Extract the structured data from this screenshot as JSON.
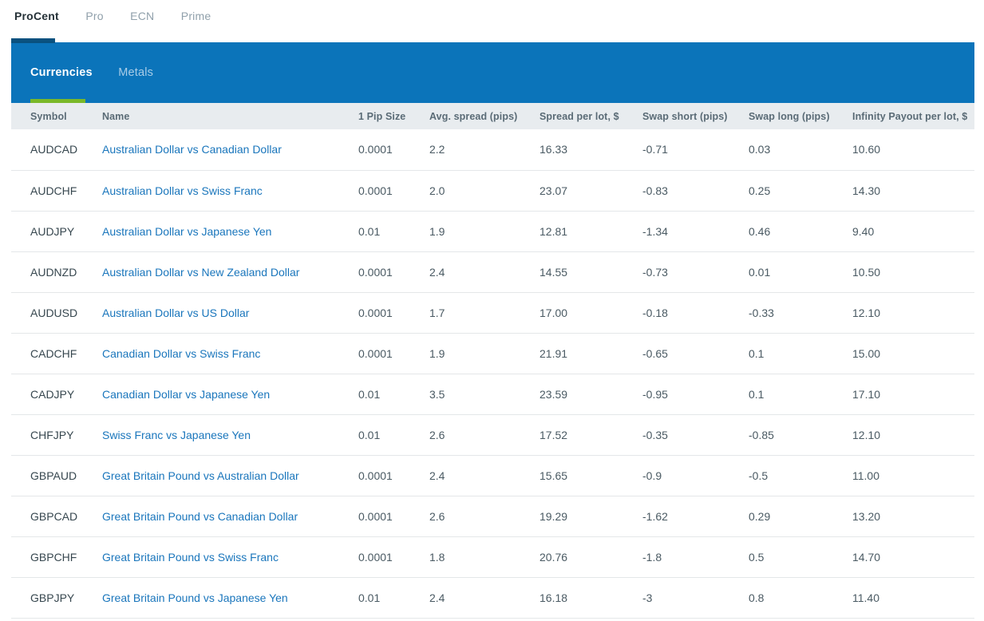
{
  "account_tabs": [
    {
      "label": "ProCent",
      "active": true
    },
    {
      "label": "Pro",
      "active": false
    },
    {
      "label": "ECN",
      "active": false
    },
    {
      "label": "Prime",
      "active": false
    }
  ],
  "instrument_tabs": [
    {
      "label": "Currencies",
      "active": true
    },
    {
      "label": "Metals",
      "active": false
    }
  ],
  "colors": {
    "panel_blue": "#0b74ba",
    "active_account_indicator": "#09517f",
    "active_instrument_underline": "#7ab829",
    "link_blue": "#1a76bc",
    "header_bg": "#e8ecef"
  },
  "table": {
    "columns": [
      "Symbol",
      "Name",
      "1 Pip Size",
      "Avg. spread (pips)",
      "Spread per lot, $",
      "Swap short (pips)",
      "Swap long (pips)",
      "Infinity Payout per lot, $"
    ],
    "rows": [
      [
        "AUDCAD",
        "Australian Dollar vs Canadian Dollar",
        "0.0001",
        "2.2",
        "16.33",
        "-0.71",
        "0.03",
        "10.60"
      ],
      [
        "AUDCHF",
        "Australian Dollar vs Swiss Franc",
        "0.0001",
        "2.0",
        "23.07",
        "-0.83",
        "0.25",
        "14.30"
      ],
      [
        "AUDJPY",
        "Australian Dollar vs Japanese Yen",
        "0.01",
        "1.9",
        "12.81",
        "-1.34",
        "0.46",
        "9.40"
      ],
      [
        "AUDNZD",
        "Australian Dollar vs New Zealand Dollar",
        "0.0001",
        "2.4",
        "14.55",
        "-0.73",
        "0.01",
        "10.50"
      ],
      [
        "AUDUSD",
        "Australian Dollar vs US Dollar",
        "0.0001",
        "1.7",
        "17.00",
        "-0.18",
        "-0.33",
        "12.10"
      ],
      [
        "CADCHF",
        "Canadian Dollar vs Swiss Franc",
        "0.0001",
        "1.9",
        "21.91",
        "-0.65",
        "0.1",
        "15.00"
      ],
      [
        "CADJPY",
        "Canadian Dollar vs Japanese Yen",
        "0.01",
        "3.5",
        "23.59",
        "-0.95",
        "0.1",
        "17.10"
      ],
      [
        "CHFJPY",
        "Swiss Franc vs Japanese Yen",
        "0.01",
        "2.6",
        "17.52",
        "-0.35",
        "-0.85",
        "12.10"
      ],
      [
        "GBPAUD",
        "Great Britain Pound vs Australian Dollar",
        "0.0001",
        "2.4",
        "15.65",
        "-0.9",
        "-0.5",
        "11.00"
      ],
      [
        "GBPCAD",
        "Great Britain Pound vs Canadian Dollar",
        "0.0001",
        "2.6",
        "19.29",
        "-1.62",
        "0.29",
        "13.20"
      ],
      [
        "GBPCHF",
        "Great Britain Pound vs Swiss Franc",
        "0.0001",
        "1.8",
        "20.76",
        "-1.8",
        "0.5",
        "14.70"
      ],
      [
        "GBPJPY",
        "Great Britain Pound vs Japanese Yen",
        "0.01",
        "2.4",
        "16.18",
        "-3",
        "0.8",
        "11.40"
      ]
    ]
  }
}
